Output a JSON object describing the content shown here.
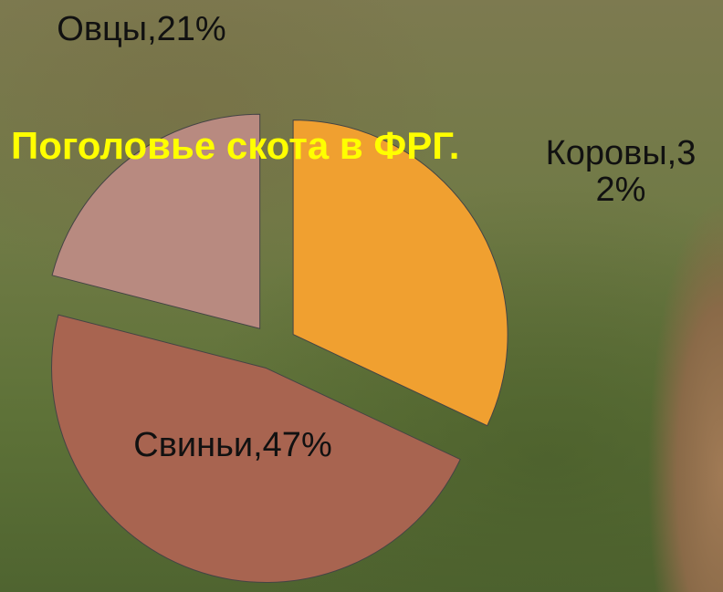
{
  "chart_data": {
    "type": "pie",
    "title": "Поголовье скота в ФРГ.",
    "categories": [
      "Коровы",
      "Свиньи",
      "Овцы"
    ],
    "values": [
      32,
      47,
      21
    ],
    "value_labels": [
      "Коровы,32%",
      "Свиньи,47%",
      "Овцы,21%"
    ],
    "colors": [
      "#f0a030",
      "#a86450",
      "#b88a80"
    ]
  }
}
